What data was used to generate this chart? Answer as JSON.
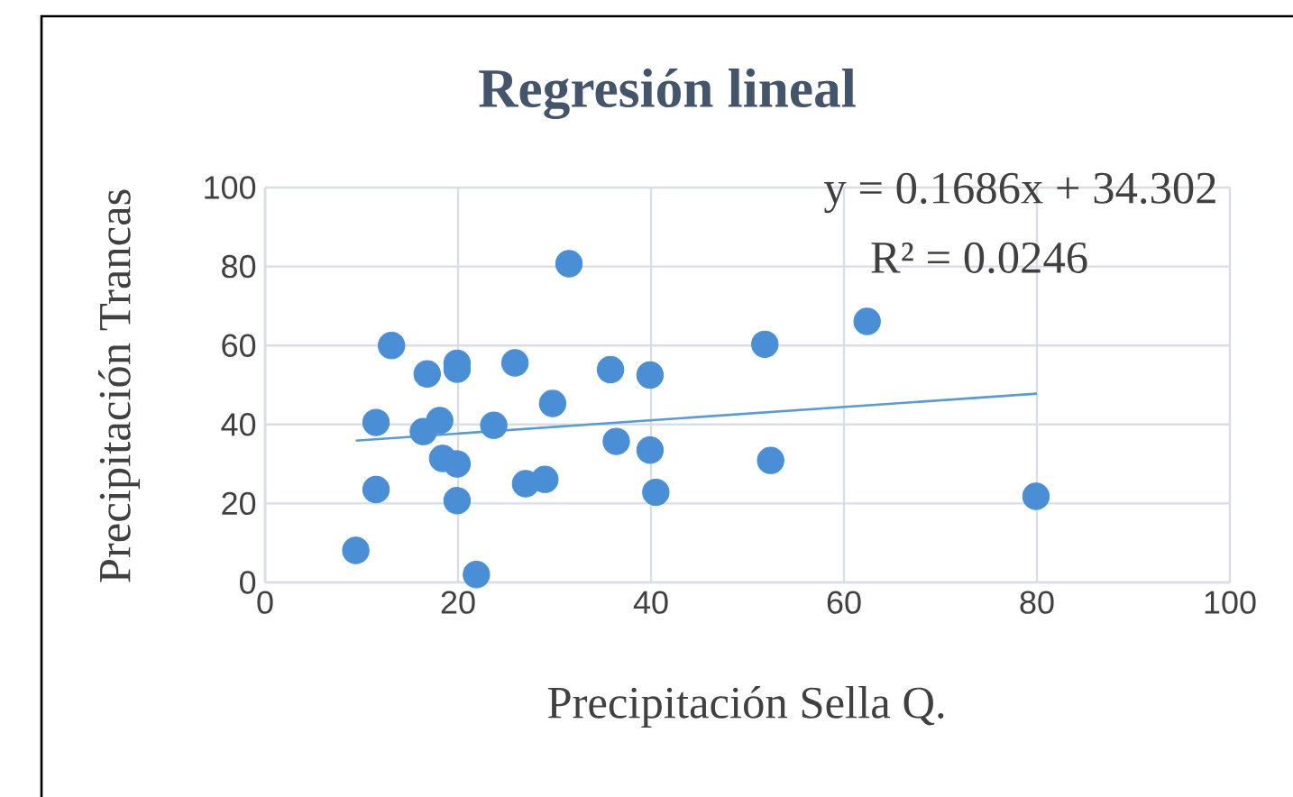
{
  "chart_data": {
    "type": "scatter",
    "title": "Regresión lineal",
    "xlabel": "Precipitación Sella Q.",
    "ylabel": "Precipitación Trancas",
    "xlim": [
      0,
      100
    ],
    "ylim": [
      0,
      100
    ],
    "xticks": [
      0,
      20,
      40,
      60,
      80,
      100
    ],
    "yticks": [
      0,
      20,
      40,
      60,
      80,
      100
    ],
    "grid": true,
    "annotations": [
      "y = 0.1686x + 34.302",
      "R² = 0.0246"
    ],
    "series": [
      {
        "marker": "circle",
        "color": "#4a8fd6",
        "x": [
          9.4,
          11.5,
          11.5,
          13.1,
          16.8,
          16.4,
          18.1,
          18.4,
          19.9,
          19.9,
          19.9,
          19.9,
          21.9,
          23.7,
          25.9,
          27.0,
          29.0,
          29.8,
          31.5,
          35.8,
          36.4,
          39.9,
          39.9,
          40.5,
          51.8,
          52.4,
          62.4,
          79.9
        ],
        "values": [
          8.1,
          40.5,
          23.5,
          60.0,
          52.8,
          38.2,
          41.0,
          31.4,
          30.0,
          55.5,
          54.0,
          20.7,
          2.0,
          39.8,
          55.6,
          25.0,
          26.1,
          45.3,
          80.7,
          53.9,
          35.7,
          52.5,
          33.5,
          22.8,
          60.3,
          30.9,
          66.1,
          21.8
        ]
      },
      {
        "type": "line",
        "marker": "none",
        "color": "#5b9bd5",
        "x": [
          9.4,
          80
        ],
        "values": [
          35.9,
          47.8
        ]
      }
    ]
  }
}
